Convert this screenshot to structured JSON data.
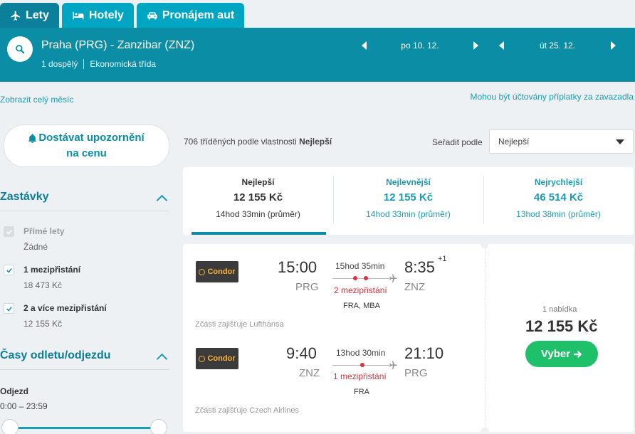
{
  "tabs": [
    {
      "label": "Lety",
      "icon": "plane-icon",
      "active": true
    },
    {
      "label": "Hotely",
      "icon": "bed-icon",
      "active": false
    },
    {
      "label": "Pronájem aut",
      "icon": "car-icon",
      "active": false
    }
  ],
  "search": {
    "route": "Praha (PRG) - Zanzibar (ZNZ)",
    "passengers": "1 dospělý",
    "cabin": "Ekonomická třída",
    "depart_date": "po 10. 12.",
    "return_date": "út 25. 12."
  },
  "links": {
    "whole_month": "Zobrazit celý měsíc",
    "fees_notice": "Mohou být účtovány příplatky za zavazadla"
  },
  "alert": {
    "line1": "Dostávat upozornění",
    "line2": "na cenu"
  },
  "filters": {
    "stops_title": "Zastávky",
    "stops": [
      {
        "label": "Přímé lety",
        "price": "Žádné",
        "checked": true,
        "disabled": true
      },
      {
        "label": "1 mezipřistání",
        "price": "18 473 Kč",
        "checked": true,
        "disabled": false
      },
      {
        "label": "2 a více mezipřistání",
        "price": "12 155 Kč",
        "checked": true,
        "disabled": false
      }
    ],
    "times_title": "Časy odletu/odjezdu",
    "departure_label": "Odjezd",
    "departure_range": "0:00 – 23:59"
  },
  "results": {
    "count_prefix": "706 tříděných podle vlastnosti",
    "count_sort": "Nejlepší",
    "sort_label": "Seřadit podle",
    "sort_value": "Nejlepší"
  },
  "sort_tabs": [
    {
      "title": "Nejlepší",
      "price": "12 155 Kč",
      "duration": "14hod 33min (průměr)",
      "active": true
    },
    {
      "title": "Nejlevnější",
      "price": "12 155 Kč",
      "duration": "14hod 33min (průměr)",
      "active": false
    },
    {
      "title": "Nejrychlejší",
      "price": "46 514 Kč",
      "duration": "13hod 38min (průměr)",
      "active": false
    }
  ],
  "result_card": {
    "outbound": {
      "airline": "Condor",
      "dep_time": "15:00",
      "dep_code": "PRG",
      "arr_time": "8:35",
      "arr_day_offset": "+1",
      "arr_code": "ZNZ",
      "duration": "15hod 35min",
      "stops": "2 mezipřistání",
      "via": "FRA, MBA",
      "operated_by": "Zčásti zajišťuje Lufthansa"
    },
    "inbound": {
      "airline": "Condor",
      "dep_time": "9:40",
      "dep_code": "ZNZ",
      "arr_time": "21:10",
      "arr_code": "PRG",
      "duration": "13hod 30min",
      "stops": "1 mezipřistání",
      "via": "FRA",
      "operated_by": "Zčásti zajišťuje Czech Airlines"
    },
    "offers": "1 nabídka",
    "price": "12 155 Kč",
    "choose_label": "Vyber"
  },
  "colors": {
    "header_bg": "#0c8da6",
    "accent": "#1a9bb3",
    "tab_bg": "#00a5c2",
    "stop_red": "#d0343a",
    "cta_green": "#1ec169"
  }
}
